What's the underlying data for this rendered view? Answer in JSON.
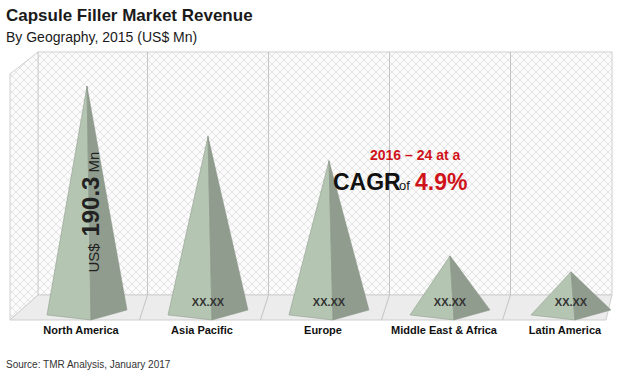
{
  "chart_data": {
    "type": "bar",
    "title": "Capsule Filler Market Revenue",
    "subtitle": "By Geography, 2015 (US$ Mn)",
    "categories": [
      "North America",
      "Asia Pacific",
      "Europe",
      "Middle East & Africa",
      "Latin America"
    ],
    "values": [
      190.3,
      149,
      129,
      51,
      38
    ],
    "value_labels": [
      "US$ 190.3 Mn",
      "XX.XX",
      "XX.XX",
      "XX.XX",
      "XX.XX"
    ],
    "data_labels": true,
    "tick_labels": "x",
    "color": "#a7b7a5",
    "annotation": {
      "period": "2016 – 24 at a",
      "cagr": "CAGR",
      "of": "of",
      "rate": "4.9%"
    },
    "source": "Source: TMR Analysis, January 2017"
  }
}
